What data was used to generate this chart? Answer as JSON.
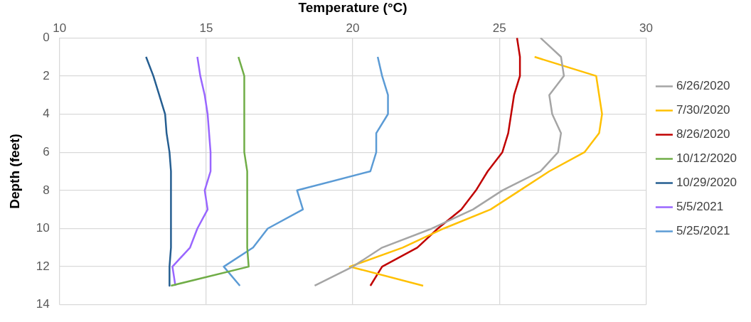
{
  "chart_data": {
    "type": "line",
    "xlabel": "Temperature (°C)",
    "ylabel": "Depth (feet)",
    "xlim": [
      10,
      30
    ],
    "xticks": [
      10,
      15,
      20,
      25,
      30
    ],
    "ylim": [
      14,
      0
    ],
    "yticks": [
      0,
      2,
      4,
      6,
      8,
      10,
      12,
      14
    ],
    "grid": true,
    "legend": "right",
    "marker": "none",
    "line_style": "solid",
    "series": [
      {
        "name": "6/26/2020",
        "color": "#a5a5a5",
        "x": [
          26.4,
          27.1,
          27.2,
          26.7,
          26.8,
          27.1,
          27.0,
          26.4,
          25.1,
          24.1,
          22.7,
          21.0,
          20.0,
          18.7
        ],
        "values": [
          0,
          1,
          2,
          3,
          4,
          5,
          6,
          7,
          8,
          9,
          10,
          11,
          12,
          13
        ]
      },
      {
        "name": "7/30/2020",
        "color": "#ffc000",
        "x": [
          26.2,
          28.3,
          28.4,
          28.5,
          28.4,
          27.9,
          26.7,
          25.7,
          24.7,
          23.1,
          21.7,
          19.9,
          22.4
        ],
        "values": [
          1,
          2,
          3,
          4,
          5,
          6,
          7,
          8,
          9,
          10,
          11,
          12,
          13
        ]
      },
      {
        "name": "8/26/2020",
        "color": "#c00000",
        "x": [
          25.6,
          25.7,
          25.7,
          25.5,
          25.4,
          25.3,
          25.1,
          24.6,
          24.2,
          23.7,
          22.9,
          22.2,
          21.0,
          20.6
        ],
        "values": [
          0,
          1,
          2,
          3,
          4,
          5,
          6,
          7,
          8,
          9,
          10,
          11,
          12,
          13
        ]
      },
      {
        "name": "10/12/2020",
        "color": "#70ad47",
        "x": [
          16.1,
          16.3,
          16.3,
          16.3,
          16.3,
          16.3,
          16.4,
          16.4,
          16.4,
          16.4,
          16.4,
          16.45,
          13.8
        ],
        "values": [
          1,
          2,
          3,
          4,
          5,
          6,
          7,
          8,
          9,
          10,
          11,
          12,
          13
        ]
      },
      {
        "name": "10/29/2020",
        "color": "#255e91",
        "x": [
          12.95,
          13.2,
          13.4,
          13.6,
          13.65,
          13.75,
          13.8,
          13.8,
          13.8,
          13.8,
          13.8,
          13.75,
          13.75
        ],
        "values": [
          1,
          2,
          3,
          4,
          5,
          6,
          7,
          8,
          9,
          10,
          11,
          12,
          13
        ]
      },
      {
        "name": "5/5/2021",
        "color": "#9966ff",
        "x": [
          14.7,
          14.8,
          14.95,
          15.05,
          15.1,
          15.15,
          15.15,
          14.95,
          15.05,
          14.7,
          14.45,
          13.85,
          13.95
        ],
        "values": [
          1,
          2,
          3,
          4,
          5,
          6,
          7,
          8,
          9,
          10,
          11,
          12,
          13
        ]
      },
      {
        "name": "5/25/2021",
        "color": "#5b9bd5",
        "x": [
          20.85,
          21.0,
          21.2,
          21.2,
          20.8,
          20.8,
          20.6,
          18.1,
          18.3,
          17.1,
          16.6,
          15.6,
          16.15
        ],
        "values": [
          1,
          2,
          3,
          4,
          5,
          6,
          7,
          8,
          9,
          10,
          11,
          12,
          13
        ]
      }
    ]
  }
}
